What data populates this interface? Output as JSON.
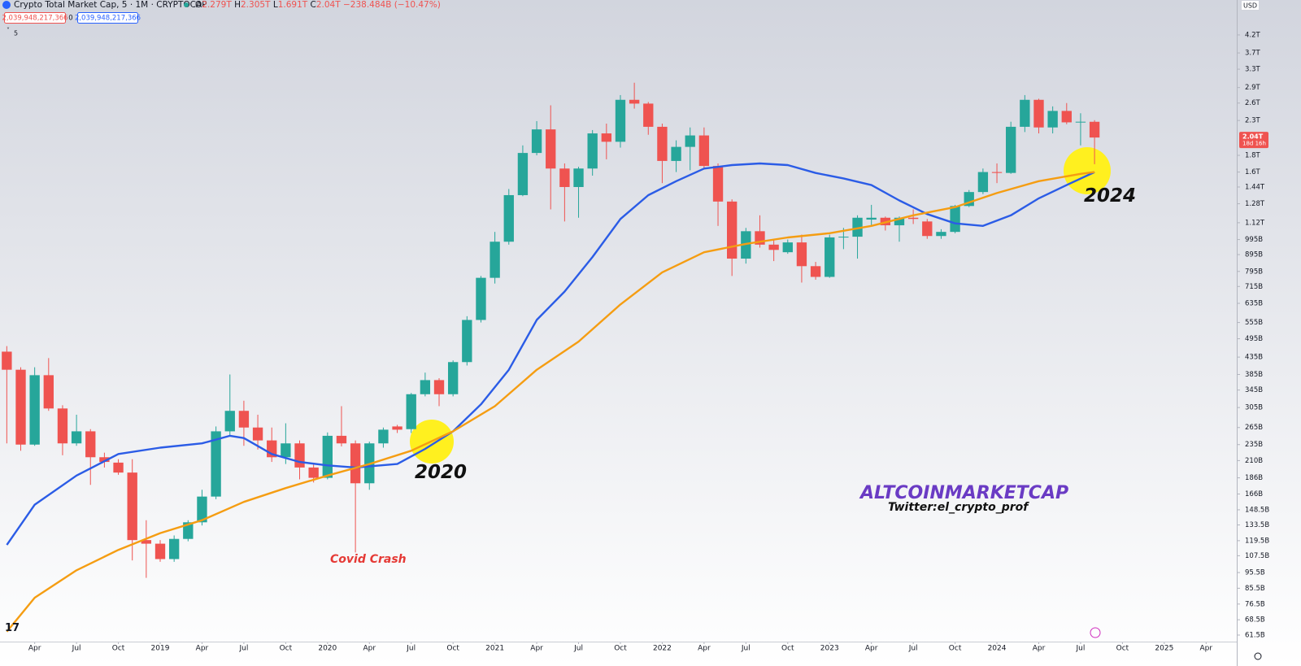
{
  "header": {
    "title": "Crypto Total Market Cap, 5 · 1M · CRYPTOCAP",
    "ohlc_keys": [
      "O",
      "H",
      "L",
      "C"
    ],
    "ohlc_values": [
      "2.279T",
      "2.305T",
      "1.691T",
      "2.04T"
    ],
    "change": "−238.484B (−10.47%)",
    "badge_left": "2,039,948,217,366",
    "badge_mid": "0",
    "badge_right": "2,039,948,217,366",
    "length": "5",
    "currency": "USD"
  },
  "chart_data": {
    "type": "candlestick",
    "log": true,
    "grid": false,
    "up_color": "#26a69a",
    "down_color": "#ef5350",
    "x": [
      "2018-02",
      "2018-03",
      "2018-04",
      "2018-05",
      "2018-06",
      "2018-07",
      "2018-08",
      "2018-09",
      "2018-10",
      "2018-11",
      "2018-12",
      "2019-01",
      "2019-02",
      "2019-03",
      "2019-04",
      "2019-05",
      "2019-06",
      "2019-07",
      "2019-08",
      "2019-09",
      "2019-10",
      "2019-11",
      "2019-12",
      "2020-01",
      "2020-02",
      "2020-03",
      "2020-04",
      "2020-05",
      "2020-06",
      "2020-07",
      "2020-08",
      "2020-09",
      "2020-10",
      "2020-11",
      "2020-12",
      "2021-01",
      "2021-02",
      "2021-03",
      "2021-04",
      "2021-05",
      "2021-06",
      "2021-07",
      "2021-08",
      "2021-09",
      "2021-10",
      "2021-11",
      "2021-12",
      "2022-01",
      "2022-02",
      "2022-03",
      "2022-04",
      "2022-05",
      "2022-06",
      "2022-07",
      "2022-08",
      "2022-09",
      "2022-10",
      "2022-11",
      "2022-12",
      "2023-01",
      "2023-02",
      "2023-03",
      "2023-04",
      "2023-05",
      "2023-06",
      "2023-07",
      "2023-08",
      "2023-09",
      "2023-10",
      "2023-11",
      "2023-12",
      "2024-01",
      "2024-02",
      "2024-03",
      "2024-04",
      "2024-05",
      "2024-06",
      "2024-07",
      "2024-08"
    ],
    "open": [
      452,
      398,
      235,
      383,
      303,
      237,
      258,
      215,
      207,
      193,
      120,
      117,
      105,
      121,
      136,
      163,
      258,
      298,
      265,
      242,
      215,
      237,
      200,
      186,
      250,
      237,
      179,
      237,
      267,
      262,
      335,
      370,
      335,
      420,
      565,
      760,
      980,
      1360,
      1830,
      2160,
      1640,
      1440,
      1640,
      2100,
      1980,
      2660,
      2590,
      2200,
      1730,
      1910,
      2070,
      1670,
      1300,
      870,
      1055,
      960,
      910,
      975,
      825,
      765,
      1010,
      1015,
      1145,
      1160,
      1100,
      1160,
      1130,
      1020,
      1050,
      1260,
      1390,
      1600,
      1590,
      2200,
      2660,
      2190,
      2460,
      2270,
      2279
    ],
    "high": [
      470,
      405,
      405,
      432,
      310,
      290,
      262,
      222,
      212,
      212,
      138,
      120,
      124,
      138,
      171,
      267,
      385,
      320,
      290,
      265,
      273,
      242,
      206,
      256,
      308,
      242,
      240,
      265,
      270,
      338,
      390,
      375,
      425,
      580,
      770,
      1050,
      1420,
      1930,
      2290,
      2560,
      1700,
      1660,
      2150,
      2250,
      2750,
      3000,
      2620,
      2250,
      2000,
      2190,
      2190,
      1700,
      1320,
      1080,
      1180,
      1000,
      995,
      1030,
      850,
      1030,
      1080,
      1180,
      1270,
      1170,
      1170,
      1230,
      1150,
      1070,
      1270,
      1410,
      1640,
      1700,
      2280,
      2750,
      2680,
      2540,
      2600,
      2420,
      2305
    ],
    "low": [
      237,
      225,
      233,
      298,
      218,
      233,
      177,
      200,
      190,
      104,
      92,
      103,
      103,
      119,
      133,
      160,
      250,
      233,
      227,
      208,
      205,
      184,
      180,
      184,
      232,
      110,
      171,
      230,
      255,
      255,
      330,
      308,
      330,
      410,
      555,
      730,
      960,
      1350,
      1800,
      1230,
      1130,
      1160,
      1560,
      1750,
      1900,
      2500,
      2080,
      1480,
      1600,
      1620,
      1640,
      1095,
      770,
      840,
      940,
      855,
      900,
      735,
      750,
      760,
      930,
      870,
      1100,
      1060,
      980,
      1110,
      1000,
      1000,
      1040,
      1250,
      1370,
      1480,
      1580,
      2120,
      2100,
      2100,
      2240,
      1930,
      1691
    ],
    "close": [
      398,
      235,
      383,
      303,
      237,
      258,
      215,
      208,
      193,
      120,
      117,
      105,
      121,
      136,
      163,
      258,
      298,
      265,
      242,
      215,
      237,
      200,
      186,
      250,
      237,
      179,
      237,
      261,
      261,
      335,
      370,
      335,
      420,
      565,
      760,
      980,
      1360,
      1830,
      2160,
      1640,
      1440,
      1640,
      2100,
      1980,
      2660,
      2590,
      2200,
      1730,
      1910,
      2070,
      1670,
      1300,
      870,
      1055,
      960,
      925,
      975,
      825,
      765,
      1010,
      1015,
      1160,
      1160,
      1100,
      1160,
      1150,
      1020,
      1050,
      1260,
      1390,
      1600,
      1590,
      2200,
      2660,
      2190,
      2460,
      2270,
      2280,
      2040
    ],
    "lines": [
      {
        "color": "#2b5ce6",
        "x": [
          "2018-02",
          "2018-04",
          "2018-07",
          "2018-10",
          "2019-01",
          "2019-04",
          "2019-06",
          "2019-07",
          "2019-09",
          "2019-11",
          "2020-01",
          "2020-03",
          "2020-06",
          "2020-08",
          "2020-10",
          "2020-12",
          "2021-02",
          "2021-04",
          "2021-06",
          "2021-08",
          "2021-10",
          "2021-12",
          "2022-02",
          "2022-04",
          "2022-06",
          "2022-08",
          "2022-10",
          "2022-12",
          "2023-02",
          "2023-04",
          "2023-06",
          "2023-08",
          "2023-10",
          "2023-12",
          "2024-02",
          "2024-04",
          "2024-06",
          "2024-08"
        ],
        "values": [
          116,
          154,
          189,
          220,
          230,
          237,
          250,
          246,
          220,
          208,
          203,
          200,
          205,
          228,
          258,
          312,
          398,
          565,
          690,
          880,
          1150,
          1360,
          1500,
          1640,
          1680,
          1700,
          1680,
          1590,
          1530,
          1460,
          1310,
          1190,
          1115,
          1095,
          1180,
          1330,
          1460,
          1600
        ]
      },
      {
        "color": "#f59d12",
        "x": [
          "2018-02",
          "2018-04",
          "2018-07",
          "2018-10",
          "2019-01",
          "2019-04",
          "2019-07",
          "2019-10",
          "2020-01",
          "2020-04",
          "2020-07",
          "2020-10",
          "2021-01",
          "2021-04",
          "2021-07",
          "2021-10",
          "2022-01",
          "2022-04",
          "2022-07",
          "2022-10",
          "2023-01",
          "2023-04",
          "2023-07",
          "2023-10",
          "2024-01",
          "2024-04",
          "2024-07",
          "2024-08"
        ],
        "values": [
          63,
          80,
          97,
          112,
          126,
          138,
          157,
          173,
          189,
          205,
          225,
          258,
          308,
          398,
          485,
          630,
          790,
          910,
          965,
          1010,
          1040,
          1095,
          1180,
          1250,
          1380,
          1500,
          1580,
          1600
        ]
      }
    ],
    "ylim": [
      58.4,
      5370
    ],
    "yticks": [
      {
        "value": 4200,
        "label": "4.2T"
      },
      {
        "value": 3700,
        "label": "3.7T"
      },
      {
        "value": 3300,
        "label": "3.3T"
      },
      {
        "value": 2900,
        "label": "2.9T"
      },
      {
        "value": 2600,
        "label": "2.6T"
      },
      {
        "value": 2300,
        "label": "2.3T"
      },
      {
        "value": 1800,
        "label": "1.8T"
      },
      {
        "value": 1600,
        "label": "1.6T"
      },
      {
        "value": 1440,
        "label": "1.44T"
      },
      {
        "value": 1280,
        "label": "1.28T"
      },
      {
        "value": 1120,
        "label": "1.12T"
      },
      {
        "value": 995,
        "label": "995B"
      },
      {
        "value": 895,
        "label": "895B"
      },
      {
        "value": 795,
        "label": "795B"
      },
      {
        "value": 715,
        "label": "715B"
      },
      {
        "value": 635,
        "label": "635B"
      },
      {
        "value": 555,
        "label": "555B"
      },
      {
        "value": 495,
        "label": "495B"
      },
      {
        "value": 435,
        "label": "435B"
      },
      {
        "value": 385,
        "label": "385B"
      },
      {
        "value": 345,
        "label": "345B"
      },
      {
        "value": 305,
        "label": "305B"
      },
      {
        "value": 265,
        "label": "265B"
      },
      {
        "value": 235,
        "label": "235B"
      },
      {
        "value": 210,
        "label": "210B"
      },
      {
        "value": 186,
        "label": "186B"
      },
      {
        "value": 166,
        "label": "166B"
      },
      {
        "value": 148.5,
        "label": "148.5B"
      },
      {
        "value": 133.5,
        "label": "133.5B"
      },
      {
        "value": 119.5,
        "label": "119.5B"
      },
      {
        "value": 107.5,
        "label": "107.5B"
      },
      {
        "value": 95.5,
        "label": "95.5B"
      },
      {
        "value": 85.5,
        "label": "85.5B"
      },
      {
        "value": 76.5,
        "label": "76.5B"
      },
      {
        "value": 68.5,
        "label": "68.5B"
      },
      {
        "value": 61.5,
        "label": "61.5B"
      }
    ],
    "xlim": [
      "2018-01",
      "2025-06"
    ],
    "xticks": [
      {
        "value": "2018-04",
        "label": "Apr"
      },
      {
        "value": "2018-07",
        "label": "Jul"
      },
      {
        "value": "2018-10",
        "label": "Oct"
      },
      {
        "value": "2019-01",
        "label": "2019"
      },
      {
        "value": "2019-04",
        "label": "Apr"
      },
      {
        "value": "2019-07",
        "label": "Jul"
      },
      {
        "value": "2019-10",
        "label": "Oct"
      },
      {
        "value": "2020-01",
        "label": "2020"
      },
      {
        "value": "2020-04",
        "label": "Apr"
      },
      {
        "value": "2020-07",
        "label": "Jul"
      },
      {
        "value": "2020-10",
        "label": "Oct"
      },
      {
        "value": "2021-01",
        "label": "2021"
      },
      {
        "value": "2021-04",
        "label": "Apr"
      },
      {
        "value": "2021-07",
        "label": "Jul"
      },
      {
        "value": "2021-10",
        "label": "Oct"
      },
      {
        "value": "2022-01",
        "label": "2022"
      },
      {
        "value": "2022-04",
        "label": "Apr"
      },
      {
        "value": "2022-07",
        "label": "Jul"
      },
      {
        "value": "2022-10",
        "label": "Oct"
      },
      {
        "value": "2023-01",
        "label": "2023"
      },
      {
        "value": "2023-04",
        "label": "Apr"
      },
      {
        "value": "2023-07",
        "label": "Jul"
      },
      {
        "value": "2023-10",
        "label": "Oct"
      },
      {
        "value": "2024-01",
        "label": "2024"
      },
      {
        "value": "2024-04",
        "label": "Apr"
      },
      {
        "value": "2024-07",
        "label": "Jul"
      },
      {
        "value": "2024-10",
        "label": "Oct"
      },
      {
        "value": "2025-01",
        "label": "2025"
      },
      {
        "value": "2025-04",
        "label": "Apr"
      }
    ],
    "price_label": "2.04T",
    "countdown": "18d 16h",
    "annotations": {
      "mark_2020": "2020",
      "mark_2024": "2024",
      "covid": "Covid Crash",
      "brand": "ALTCOINMARKETCAP",
      "twitter": "Twitter:el_crypto_prof"
    }
  }
}
